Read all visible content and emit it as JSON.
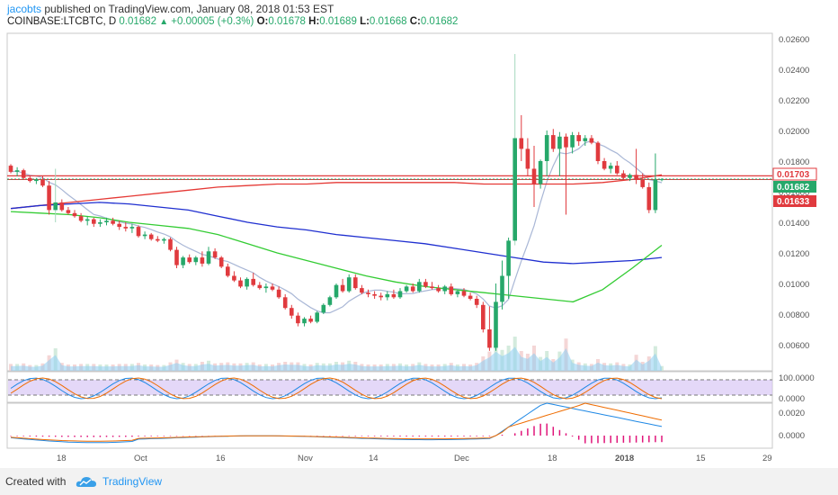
{
  "header": {
    "username": "jacobts",
    "published_text": " published on TradingView.com, January 08, 2018 01:53 EST",
    "symbol": "COINBASE:LTCBTC, D",
    "last": "0.01682",
    "arrow": "▲",
    "change": "+0.00005 (+0.3%)",
    "o_label": "O:",
    "o": "0.01678",
    "h_label": "H:",
    "h": "0.01689",
    "l_label": "L:",
    "l": "0.01668",
    "c_label": "C:",
    "c": "0.01682"
  },
  "colors": {
    "up": "#26a86a",
    "down": "#e03a3e",
    "sma_red": "#e53935",
    "sma_blue": "#1f2fd0",
    "sma_green": "#33cc33",
    "sma_light": "#a9b7d6",
    "volume_fill": "#8ecdf2",
    "rsi_band": "#d9c8f5",
    "stoch_k": "#1e88e5",
    "stoch_d": "#ef6c00",
    "macd_hist": "#e0157a"
  },
  "price_axis": {
    "ticks": [
      "0.02600",
      "0.02400",
      "0.02200",
      "0.02000",
      "0.01800",
      "0.01600",
      "0.01400",
      "0.01200",
      "0.01000",
      "0.00800",
      "0.00600"
    ]
  },
  "price_labels": [
    {
      "text": "0.01703",
      "kind": "red-outline"
    },
    {
      "text": "0.01682",
      "kind": "green"
    },
    {
      "text": "0.01633",
      "kind": "red"
    }
  ],
  "horizontal_lines": [
    0.01703,
    0.01682,
    0.01633
  ],
  "stoch_axis": {
    "ticks": [
      "100.0000",
      "0.0000"
    ]
  },
  "macd_axis": {
    "ticks": [
      "0.0020",
      "0.0000"
    ]
  },
  "time_axis": {
    "labels": [
      "18",
      "Oct",
      "16",
      "Nov",
      "14",
      "Dec",
      "18",
      "2018",
      "15",
      "29"
    ]
  },
  "chart_data": {
    "type": "candlestick",
    "symbol": "COINBASE:LTCBTC",
    "interval": "D",
    "ylim": [
      0.0045,
      0.0265
    ],
    "candles": [
      [
        0.0177,
        0.0178,
        0.0172,
        0.0173
      ],
      [
        0.0173,
        0.0176,
        0.017,
        0.0174
      ],
      [
        0.0174,
        0.0175,
        0.0168,
        0.0169
      ],
      [
        0.0169,
        0.017,
        0.0166,
        0.0167
      ],
      [
        0.0167,
        0.0169,
        0.0165,
        0.0168
      ],
      [
        0.0168,
        0.017,
        0.0163,
        0.0164
      ],
      [
        0.0164,
        0.0167,
        0.0145,
        0.0148
      ],
      [
        0.0148,
        0.0175,
        0.014,
        0.0153
      ],
      [
        0.0153,
        0.0155,
        0.0147,
        0.0148
      ],
      [
        0.0148,
        0.015,
        0.0145,
        0.0146
      ],
      [
        0.0146,
        0.0148,
        0.0143,
        0.0144
      ],
      [
        0.0144,
        0.0146,
        0.014,
        0.0141
      ],
      [
        0.0141,
        0.0144,
        0.0138,
        0.0142
      ],
      [
        0.0142,
        0.0143,
        0.0137,
        0.0139
      ],
      [
        0.0139,
        0.0142,
        0.0137,
        0.014
      ],
      [
        0.014,
        0.0143,
        0.0138,
        0.0141
      ],
      [
        0.0141,
        0.0143,
        0.0138,
        0.0139
      ],
      [
        0.0139,
        0.0141,
        0.0135,
        0.0137
      ],
      [
        0.0137,
        0.014,
        0.0134,
        0.0136
      ],
      [
        0.0136,
        0.0139,
        0.0133,
        0.0137
      ],
      [
        0.0137,
        0.0138,
        0.013,
        0.0131
      ],
      [
        0.0131,
        0.0134,
        0.0129,
        0.0132
      ],
      [
        0.0132,
        0.0133,
        0.0128,
        0.0129
      ],
      [
        0.0129,
        0.0131,
        0.0127,
        0.0128
      ],
      [
        0.0128,
        0.013,
        0.0126,
        0.0129
      ],
      [
        0.0129,
        0.013,
        0.0121,
        0.0122
      ],
      [
        0.0122,
        0.0124,
        0.011,
        0.0112
      ],
      [
        0.0112,
        0.0118,
        0.011,
        0.0117
      ],
      [
        0.0117,
        0.0119,
        0.0113,
        0.0114
      ],
      [
        0.0114,
        0.0118,
        0.0112,
        0.0117
      ],
      [
        0.0117,
        0.0121,
        0.0111,
        0.0113
      ],
      [
        0.0113,
        0.0124,
        0.0112,
        0.0121
      ],
      [
        0.0121,
        0.0123,
        0.0116,
        0.0117
      ],
      [
        0.0117,
        0.0118,
        0.011,
        0.0111
      ],
      [
        0.0111,
        0.0113,
        0.0104,
        0.0105
      ],
      [
        0.0105,
        0.0108,
        0.0101,
        0.0102
      ],
      [
        0.0102,
        0.0104,
        0.0097,
        0.0098
      ],
      [
        0.0098,
        0.0104,
        0.0096,
        0.0103
      ],
      [
        0.0103,
        0.0107,
        0.0098,
        0.0099
      ],
      [
        0.0099,
        0.0101,
        0.0096,
        0.0097
      ],
      [
        0.0097,
        0.01,
        0.0094,
        0.0098
      ],
      [
        0.0098,
        0.01,
        0.0095,
        0.0096
      ],
      [
        0.0096,
        0.0098,
        0.009,
        0.0091
      ],
      [
        0.0091,
        0.0093,
        0.0083,
        0.0084
      ],
      [
        0.0084,
        0.0086,
        0.0077,
        0.0079
      ],
      [
        0.0079,
        0.0081,
        0.0072,
        0.0074
      ],
      [
        0.0074,
        0.0078,
        0.0072,
        0.0077
      ],
      [
        0.0077,
        0.0079,
        0.0074,
        0.0075
      ],
      [
        0.0075,
        0.0082,
        0.0074,
        0.0081
      ],
      [
        0.0081,
        0.0087,
        0.008,
        0.0086
      ],
      [
        0.0086,
        0.0092,
        0.0085,
        0.0091
      ],
      [
        0.0091,
        0.01,
        0.009,
        0.0099
      ],
      [
        0.0099,
        0.0103,
        0.0094,
        0.0095
      ],
      [
        0.0095,
        0.0106,
        0.0094,
        0.0104
      ],
      [
        0.0104,
        0.0106,
        0.0096,
        0.0097
      ],
      [
        0.0097,
        0.0099,
        0.0093,
        0.0094
      ],
      [
        0.0094,
        0.0096,
        0.0091,
        0.0093
      ],
      [
        0.0093,
        0.0095,
        0.009,
        0.0092
      ],
      [
        0.0092,
        0.0094,
        0.0089,
        0.0091
      ],
      [
        0.0091,
        0.0095,
        0.0089,
        0.0093
      ],
      [
        0.0093,
        0.0096,
        0.009,
        0.0091
      ],
      [
        0.0091,
        0.0097,
        0.009,
        0.0095
      ],
      [
        0.0095,
        0.0099,
        0.0094,
        0.0098
      ],
      [
        0.0098,
        0.01,
        0.0094,
        0.0095
      ],
      [
        0.0095,
        0.0103,
        0.0094,
        0.0101
      ],
      [
        0.0101,
        0.0103,
        0.0097,
        0.0098
      ],
      [
        0.0098,
        0.0101,
        0.0096,
        0.0097
      ],
      [
        0.0097,
        0.0099,
        0.0094,
        0.0095
      ],
      [
        0.0095,
        0.0099,
        0.0093,
        0.0098
      ],
      [
        0.0098,
        0.01,
        0.0092,
        0.0093
      ],
      [
        0.0093,
        0.0096,
        0.0091,
        0.0095
      ],
      [
        0.0095,
        0.0097,
        0.0091,
        0.0092
      ],
      [
        0.0092,
        0.0094,
        0.0089,
        0.009
      ],
      [
        0.009,
        0.0092,
        0.0084,
        0.0086
      ],
      [
        0.0086,
        0.0088,
        0.0068,
        0.007
      ],
      [
        0.007,
        0.0085,
        0.0056,
        0.0058
      ],
      [
        0.0058,
        0.01,
        0.0056,
        0.0088
      ],
      [
        0.0088,
        0.0115,
        0.0083,
        0.0105
      ],
      [
        0.0105,
        0.013,
        0.009,
        0.0128
      ],
      [
        0.0128,
        0.025,
        0.0125,
        0.0195
      ],
      [
        0.0195,
        0.021,
        0.018,
        0.0188
      ],
      [
        0.0188,
        0.0195,
        0.017,
        0.0175
      ],
      [
        0.0175,
        0.019,
        0.015,
        0.0165
      ],
      [
        0.0165,
        0.0181,
        0.0162,
        0.018
      ],
      [
        0.018,
        0.02,
        0.017,
        0.0197
      ],
      [
        0.0197,
        0.0201,
        0.0186,
        0.0188
      ],
      [
        0.0188,
        0.0199,
        0.017,
        0.0196
      ],
      [
        0.0196,
        0.0198,
        0.0145,
        0.0189
      ],
      [
        0.0189,
        0.0199,
        0.0185,
        0.0197
      ],
      [
        0.0197,
        0.0199,
        0.019,
        0.0193
      ],
      [
        0.0193,
        0.0197,
        0.019,
        0.0195
      ],
      [
        0.0195,
        0.0197,
        0.0191,
        0.0192
      ],
      [
        0.0192,
        0.0193,
        0.0178,
        0.018
      ],
      [
        0.018,
        0.0182,
        0.0174,
        0.0175
      ],
      [
        0.0175,
        0.0179,
        0.0172,
        0.0177
      ],
      [
        0.0177,
        0.018,
        0.0171,
        0.0172
      ],
      [
        0.0172,
        0.0174,
        0.0168,
        0.0169
      ],
      [
        0.0169,
        0.0172,
        0.0167,
        0.0171
      ],
      [
        0.0171,
        0.0188,
        0.0165,
        0.0168
      ],
      [
        0.0168,
        0.0172,
        0.0162,
        0.0163
      ],
      [
        0.0163,
        0.0166,
        0.0146,
        0.0148
      ],
      [
        0.0148,
        0.0185,
        0.0146,
        0.0168
      ],
      [
        0.01678,
        0.01689,
        0.01668,
        0.01682
      ]
    ],
    "sma_red": [
      0.0149,
      0.0151,
      0.0153,
      0.0155,
      0.0157,
      0.0159,
      0.0161,
      0.0163,
      0.0164,
      0.0165,
      0.0165,
      0.0166,
      0.0166,
      0.0166,
      0.0166,
      0.0166,
      0.0165,
      0.0165,
      0.0165,
      0.0165,
      0.0166,
      0.0168,
      0.0171
    ],
    "sma_blue": [
      0.0149,
      0.0151,
      0.0152,
      0.0153,
      0.0152,
      0.015,
      0.0148,
      0.0144,
      0.014,
      0.0137,
      0.0135,
      0.0132,
      0.013,
      0.0128,
      0.0126,
      0.0123,
      0.012,
      0.0117,
      0.0114,
      0.0113,
      0.0114,
      0.0115,
      0.0117
    ],
    "sma_green": [
      0.0147,
      0.0146,
      0.0145,
      0.0143,
      0.014,
      0.0138,
      0.0136,
      0.0132,
      0.0126,
      0.012,
      0.0115,
      0.011,
      0.0105,
      0.0101,
      0.0098,
      0.0096,
      0.0094,
      0.0092,
      0.009,
      0.0088,
      0.0096,
      0.011,
      0.0125
    ]
  }
}
